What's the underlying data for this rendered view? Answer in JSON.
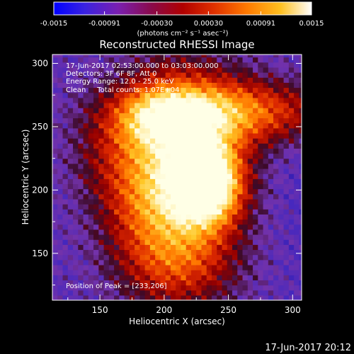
{
  "colorbar": {
    "tick_labels": [
      "-0.0015",
      "-0.00091",
      "-0.00030",
      "0.00030",
      "0.00091",
      "0.0015"
    ],
    "range": [
      -0.0015,
      0.0015
    ],
    "units_label": "(photons cm⁻² s⁻¹ asec⁻²)",
    "colormap": [
      "#0000ff",
      "#5a2fd1",
      "#8a1a8a",
      "#b00000",
      "#e03000",
      "#ff7a00",
      "#ffc020",
      "#fff8b0",
      "#ffffff"
    ]
  },
  "chart_data": {
    "type": "heatmap",
    "title": "Reconstructed RHESSI Image",
    "xlabel": "Heliocentric X (arcsec)",
    "ylabel": "Heliocentric Y (arcsec)",
    "xlim": [
      113,
      307
    ],
    "ylim": [
      113,
      307
    ],
    "xticks": [
      "150",
      "200",
      "250",
      "300"
    ],
    "yticks": [
      "150",
      "200",
      "250",
      "300"
    ],
    "annotations": [
      "17-Jun-2017 02:53:00.000 to 03:03:00.000",
      "Detectors: 3F 6F 8F, Att 0",
      "Energy Range: 12.0 - 25.0 keV",
      "Clean     Total counts: 1.07E+04"
    ],
    "peak_label": "Position of Peak = [233,206]",
    "peak": [
      233,
      206
    ]
  },
  "footer": {
    "timestamp": "17-Jun-2017 20:12"
  }
}
